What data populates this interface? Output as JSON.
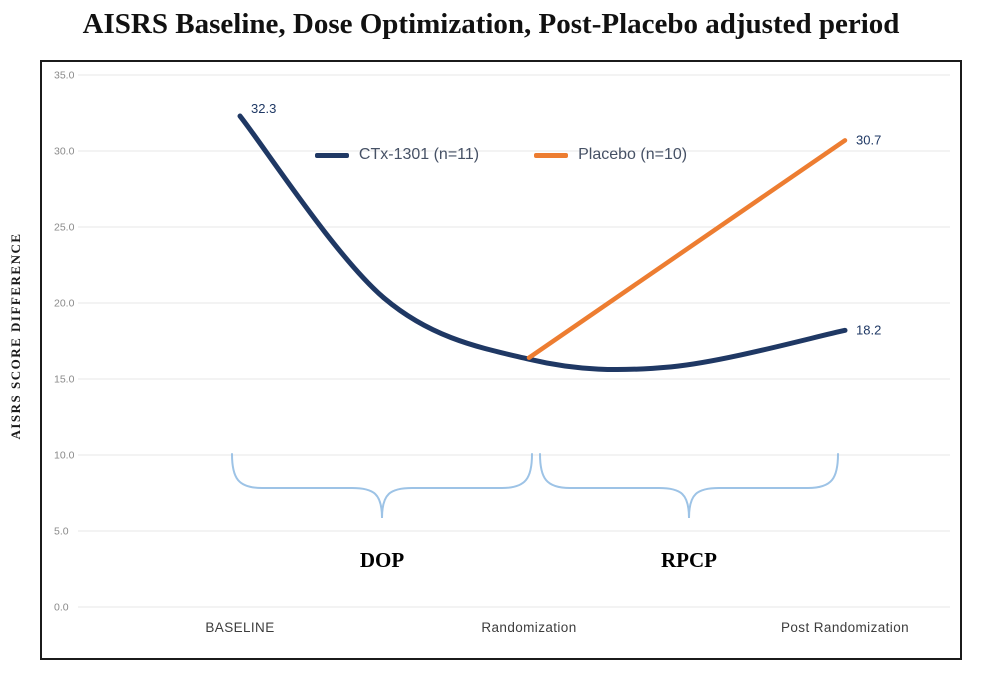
{
  "chart_data": {
    "type": "line",
    "title": "AISRS Baseline, Dose Optimization, Post-Placebo adjusted period",
    "ylabel": "AISRS SCORE DIFFERENCE",
    "xlabel": "",
    "categories": [
      "BASELINE",
      "Randomization",
      "Post Randomization"
    ],
    "ylim": [
      0,
      35
    ],
    "y_ticks": [
      35,
      30,
      25,
      20,
      15,
      10,
      5,
      0
    ],
    "grid": true,
    "legend_position": "top-center",
    "series": [
      {
        "name": "CTx-1301 (n=11)",
        "color": "#1F3864",
        "values": [
          32.3,
          16.3,
          18.2
        ],
        "start_label": "32.3",
        "end_label": "18.2",
        "path": [
          {
            "x": 0,
            "v": 32.3
          },
          {
            "x": 0.5,
            "v": 20.3
          },
          {
            "x": 1,
            "v": 16.3
          },
          {
            "x": 1.45,
            "v": 15.8
          },
          {
            "x": 2,
            "v": 18.2
          }
        ]
      },
      {
        "name": "Placebo (n=10)",
        "color": "#ED7D31",
        "values": [
          null,
          16.4,
          30.7
        ],
        "end_label": "30.7",
        "path": [
          {
            "x": 1,
            "v": 16.4
          },
          {
            "x": 2,
            "v": 30.7
          }
        ]
      }
    ],
    "annotations": [
      {
        "label": "DOP",
        "from": 0,
        "to": 1
      },
      {
        "label": "RPCP",
        "from": 1,
        "to": 2
      }
    ],
    "brace_color": "#9DC3E6",
    "gridline_color": "#e7e7e7",
    "tick_label_color": "#8a8a8a",
    "data_label_color": "#1F3864"
  }
}
